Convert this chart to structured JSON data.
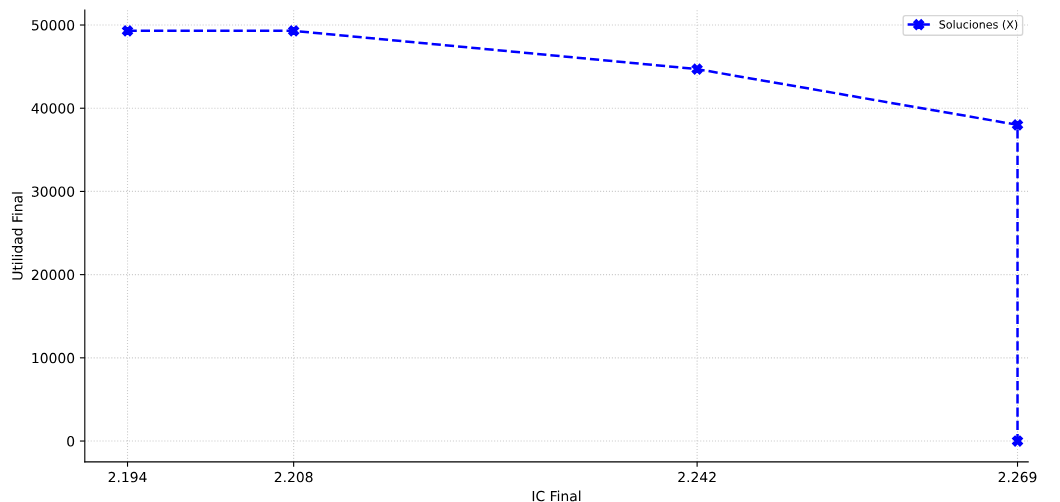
{
  "chart_data": {
    "type": "line",
    "xlabel": "IC Final",
    "ylabel": "Utilidad Final",
    "series": [
      {
        "name": "Soluciones (X)",
        "color": "#0000ff",
        "x": [
          2.194,
          2.208,
          2.242,
          2.269,
          2.269
        ],
        "values": [
          49300,
          49300,
          44700,
          38000,
          0
        ]
      }
    ],
    "xlim": [
      2.1904,
      2.2699
    ],
    "xticks": [
      2.194,
      2.208,
      2.242,
      2.269
    ],
    "ylim": [
      -2500,
      51800
    ],
    "yticks": [
      0,
      10000,
      20000,
      30000,
      40000,
      50000
    ],
    "grid": true,
    "legend": "top right",
    "marker": "cross",
    "line_style": "dashed"
  }
}
